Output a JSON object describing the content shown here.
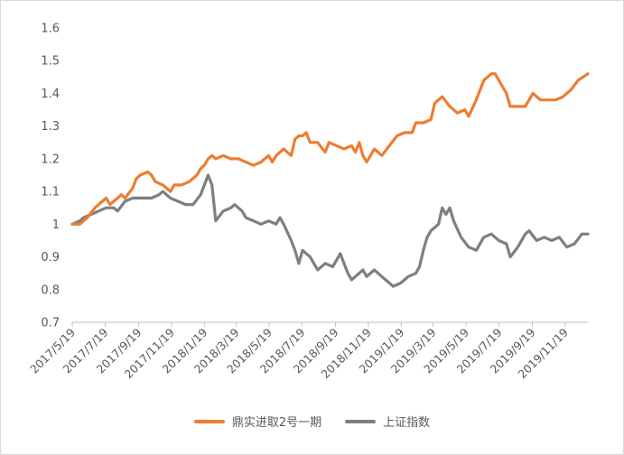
{
  "chart_data": {
    "type": "line",
    "title": "",
    "xlabel": "",
    "ylabel": "",
    "ylim": [
      0.7,
      1.6
    ],
    "yticks": [
      "0.7",
      "0.8",
      "0.9",
      "1",
      "1.1",
      "1.2",
      "1.3",
      "1.4",
      "1.5",
      "1.6"
    ],
    "x_tick_labels": [
      "2017/5/19",
      "2017/7/19",
      "2017/9/19",
      "2017/11/19",
      "2018/1/19",
      "2018/3/19",
      "2018/5/19",
      "2018/7/19",
      "2018/9/19",
      "2018/11/19",
      "2019/1/19",
      "2019/3/19",
      "2019/5/19",
      "2019/7/19",
      "2019/9/19",
      "2019/11/19"
    ],
    "x_range": [
      "2017/5/19",
      "2019/12/31"
    ],
    "grid": false,
    "legend": "bottom",
    "series": [
      {
        "name": "鼎实进取2号一期",
        "color": "#ED7D31",
        "points": [
          [
            "2017/5/19",
            1.0
          ],
          [
            "2017/6/2",
            1.0
          ],
          [
            "2017/6/16",
            1.02
          ],
          [
            "2017/6/30",
            1.05
          ],
          [
            "2017/7/14",
            1.07
          ],
          [
            "2017/7/21",
            1.08
          ],
          [
            "2017/7/28",
            1.06
          ],
          [
            "2017/8/11",
            1.08
          ],
          [
            "2017/8/18",
            1.09
          ],
          [
            "2017/8/25",
            1.08
          ],
          [
            "2017/9/8",
            1.11
          ],
          [
            "2017/9/15",
            1.14
          ],
          [
            "2017/9/22",
            1.15
          ],
          [
            "2017/10/6",
            1.16
          ],
          [
            "2017/10/13",
            1.15
          ],
          [
            "2017/10/20",
            1.13
          ],
          [
            "2017/11/3",
            1.12
          ],
          [
            "2017/11/17",
            1.1
          ],
          [
            "2017/11/24",
            1.12
          ],
          [
            "2017/12/8",
            1.12
          ],
          [
            "2017/12/22",
            1.13
          ],
          [
            "2018/1/5",
            1.15
          ],
          [
            "2018/1/12",
            1.17
          ],
          [
            "2018/1/19",
            1.18
          ],
          [
            "2018/1/26",
            1.2
          ],
          [
            "2018/2/2",
            1.21
          ],
          [
            "2018/2/9",
            1.2
          ],
          [
            "2018/2/23",
            1.21
          ],
          [
            "2018/3/9",
            1.2
          ],
          [
            "2018/3/23",
            1.2
          ],
          [
            "2018/4/6",
            1.19
          ],
          [
            "2018/4/20",
            1.18
          ],
          [
            "2018/5/4",
            1.19
          ],
          [
            "2018/5/18",
            1.21
          ],
          [
            "2018/5/25",
            1.19
          ],
          [
            "2018/6/1",
            1.21
          ],
          [
            "2018/6/15",
            1.23
          ],
          [
            "2018/6/29",
            1.21
          ],
          [
            "2018/7/6",
            1.26
          ],
          [
            "2018/7/13",
            1.27
          ],
          [
            "2018/7/20",
            1.27
          ],
          [
            "2018/7/27",
            1.28
          ],
          [
            "2018/8/3",
            1.25
          ],
          [
            "2018/8/17",
            1.25
          ],
          [
            "2018/8/31",
            1.22
          ],
          [
            "2018/9/7",
            1.25
          ],
          [
            "2018/9/21",
            1.24
          ],
          [
            "2018/10/5",
            1.23
          ],
          [
            "2018/10/19",
            1.24
          ],
          [
            "2018/10/26",
            1.22
          ],
          [
            "2018/11/2",
            1.25
          ],
          [
            "2018/11/9",
            1.21
          ],
          [
            "2018/11/16",
            1.19
          ],
          [
            "2018/11/30",
            1.23
          ],
          [
            "2018/12/14",
            1.21
          ],
          [
            "2018/12/28",
            1.24
          ],
          [
            "2019/1/11",
            1.27
          ],
          [
            "2019/1/25",
            1.28
          ],
          [
            "2019/2/8",
            1.28
          ],
          [
            "2019/2/15",
            1.31
          ],
          [
            "2019/3/1",
            1.31
          ],
          [
            "2019/3/15",
            1.32
          ],
          [
            "2019/3/22",
            1.37
          ],
          [
            "2019/4/5",
            1.39
          ],
          [
            "2019/4/19",
            1.36
          ],
          [
            "2019/5/3",
            1.34
          ],
          [
            "2019/5/17",
            1.35
          ],
          [
            "2019/5/24",
            1.33
          ],
          [
            "2019/6/7",
            1.38
          ],
          [
            "2019/6/21",
            1.44
          ],
          [
            "2019/7/5",
            1.46
          ],
          [
            "2019/7/12",
            1.46
          ],
          [
            "2019/7/19",
            1.44
          ],
          [
            "2019/8/2",
            1.4
          ],
          [
            "2019/8/9",
            1.36
          ],
          [
            "2019/8/23",
            1.36
          ],
          [
            "2019/9/6",
            1.36
          ],
          [
            "2019/9/20",
            1.4
          ],
          [
            "2019/10/4",
            1.38
          ],
          [
            "2019/10/18",
            1.38
          ],
          [
            "2019/11/1",
            1.38
          ],
          [
            "2019/11/15",
            1.39
          ],
          [
            "2019/11/29",
            1.41
          ],
          [
            "2019/12/13",
            1.44
          ],
          [
            "2019/12/31",
            1.46
          ]
        ]
      },
      {
        "name": "上证指数",
        "color": "#7F7F7F",
        "points": [
          [
            "2017/5/19",
            1.0
          ],
          [
            "2017/6/2",
            1.01
          ],
          [
            "2017/6/9",
            1.02
          ],
          [
            "2017/6/23",
            1.03
          ],
          [
            "2017/7/7",
            1.04
          ],
          [
            "2017/7/21",
            1.05
          ],
          [
            "2017/8/4",
            1.05
          ],
          [
            "2017/8/11",
            1.04
          ],
          [
            "2017/8/25",
            1.07
          ],
          [
            "2017/9/8",
            1.08
          ],
          [
            "2017/9/22",
            1.08
          ],
          [
            "2017/10/13",
            1.08
          ],
          [
            "2017/10/27",
            1.09
          ],
          [
            "2017/11/3",
            1.1
          ],
          [
            "2017/11/17",
            1.08
          ],
          [
            "2017/12/1",
            1.07
          ],
          [
            "2017/12/15",
            1.06
          ],
          [
            "2017/12/29",
            1.06
          ],
          [
            "2018/1/12",
            1.09
          ],
          [
            "2018/1/19",
            1.12
          ],
          [
            "2018/1/26",
            1.15
          ],
          [
            "2018/2/2",
            1.12
          ],
          [
            "2018/2/9",
            1.01
          ],
          [
            "2018/2/23",
            1.04
          ],
          [
            "2018/3/9",
            1.05
          ],
          [
            "2018/3/16",
            1.06
          ],
          [
            "2018/3/30",
            1.04
          ],
          [
            "2018/4/6",
            1.02
          ],
          [
            "2018/4/20",
            1.01
          ],
          [
            "2018/5/4",
            1.0
          ],
          [
            "2018/5/18",
            1.01
          ],
          [
            "2018/6/1",
            1.0
          ],
          [
            "2018/6/8",
            1.02
          ],
          [
            "2018/6/15",
            1.0
          ],
          [
            "2018/6/29",
            0.95
          ],
          [
            "2018/7/6",
            0.92
          ],
          [
            "2018/7/13",
            0.88
          ],
          [
            "2018/7/20",
            0.92
          ],
          [
            "2018/8/3",
            0.9
          ],
          [
            "2018/8/10",
            0.88
          ],
          [
            "2018/8/17",
            0.86
          ],
          [
            "2018/8/31",
            0.88
          ],
          [
            "2018/9/14",
            0.87
          ],
          [
            "2018/9/28",
            0.91
          ],
          [
            "2018/10/12",
            0.85
          ],
          [
            "2018/10/19",
            0.83
          ],
          [
            "2018/10/26",
            0.84
          ],
          [
            "2018/11/9",
            0.86
          ],
          [
            "2018/11/16",
            0.84
          ],
          [
            "2018/11/30",
            0.86
          ],
          [
            "2018/12/14",
            0.84
          ],
          [
            "2018/12/28",
            0.82
          ],
          [
            "2019/1/4",
            0.81
          ],
          [
            "2019/1/18",
            0.82
          ],
          [
            "2019/2/1",
            0.84
          ],
          [
            "2019/2/15",
            0.85
          ],
          [
            "2019/2/22",
            0.87
          ],
          [
            "2019/3/1",
            0.92
          ],
          [
            "2019/3/8",
            0.96
          ],
          [
            "2019/3/15",
            0.98
          ],
          [
            "2019/3/29",
            1.0
          ],
          [
            "2019/4/5",
            1.05
          ],
          [
            "2019/4/12",
            1.03
          ],
          [
            "2019/4/19",
            1.05
          ],
          [
            "2019/4/26",
            1.01
          ],
          [
            "2019/5/10",
            0.96
          ],
          [
            "2019/5/24",
            0.93
          ],
          [
            "2019/6/7",
            0.92
          ],
          [
            "2019/6/14",
            0.94
          ],
          [
            "2019/6/21",
            0.96
          ],
          [
            "2019/7/5",
            0.97
          ],
          [
            "2019/7/19",
            0.95
          ],
          [
            "2019/8/2",
            0.94
          ],
          [
            "2019/8/9",
            0.9
          ],
          [
            "2019/8/23",
            0.93
          ],
          [
            "2019/9/6",
            0.97
          ],
          [
            "2019/9/13",
            0.98
          ],
          [
            "2019/9/27",
            0.95
          ],
          [
            "2019/10/11",
            0.96
          ],
          [
            "2019/10/25",
            0.95
          ],
          [
            "2019/11/8",
            0.96
          ],
          [
            "2019/11/22",
            0.93
          ],
          [
            "2019/12/6",
            0.94
          ],
          [
            "2019/12/20",
            0.97
          ],
          [
            "2019/12/31",
            0.97
          ]
        ]
      }
    ]
  }
}
